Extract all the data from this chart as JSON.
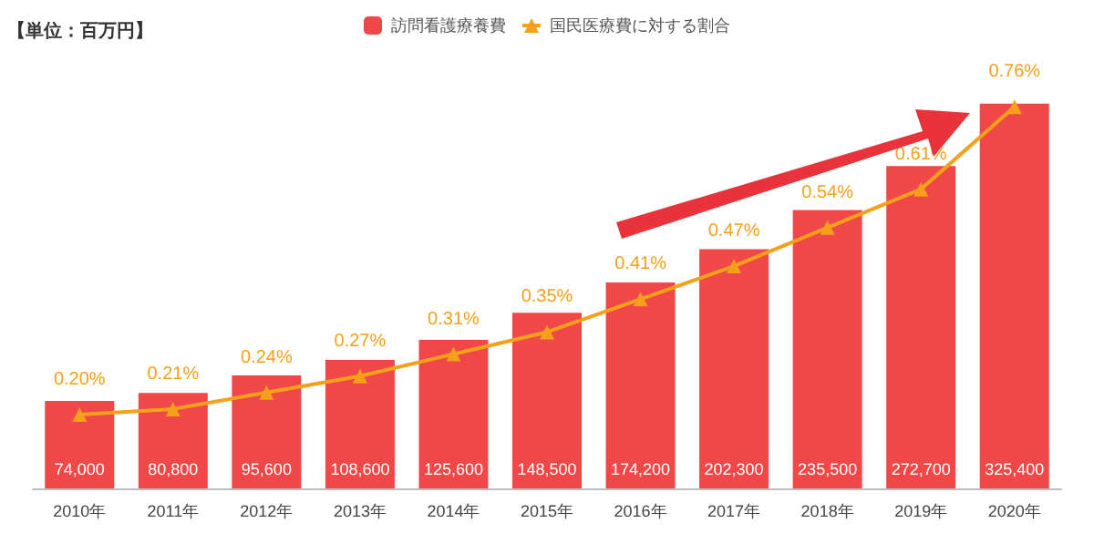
{
  "chart_data": {
    "type": "bar",
    "annotations": [
      "【単位：百万円】"
    ],
    "categories": [
      "2010年",
      "2011年",
      "2012年",
      "2013年",
      "2014年",
      "2015年",
      "2016年",
      "2017年",
      "2018年",
      "2019年",
      "2020年"
    ],
    "series": [
      {
        "name": "訪問看護療養費",
        "color": "#f04848",
        "values": [
          74000,
          80800,
          95600,
          108600,
          125600,
          148500,
          174200,
          202300,
          235500,
          272700,
          325400
        ],
        "value_labels": [
          "74,000",
          "80,800",
          "95,600",
          "108,600",
          "125,600",
          "148,500",
          "174,200",
          "202,300",
          "235,500",
          "272,700",
          "325,400"
        ]
      },
      {
        "name": "国民医療費に対する割合",
        "type": "line",
        "axis": "y2",
        "color": "#f5a01a",
        "marker": "triangle",
        "values": [
          0.2,
          0.21,
          0.24,
          0.27,
          0.31,
          0.35,
          0.41,
          0.47,
          0.54,
          0.61,
          0.76
        ],
        "value_labels": [
          "0.20%",
          "0.21%",
          "0.24%",
          "0.27%",
          "0.31%",
          "0.35%",
          "0.41%",
          "0.47%",
          "0.54%",
          "0.61%",
          "0.76%"
        ]
      }
    ],
    "tick_labels": "x",
    "legend": "top"
  }
}
